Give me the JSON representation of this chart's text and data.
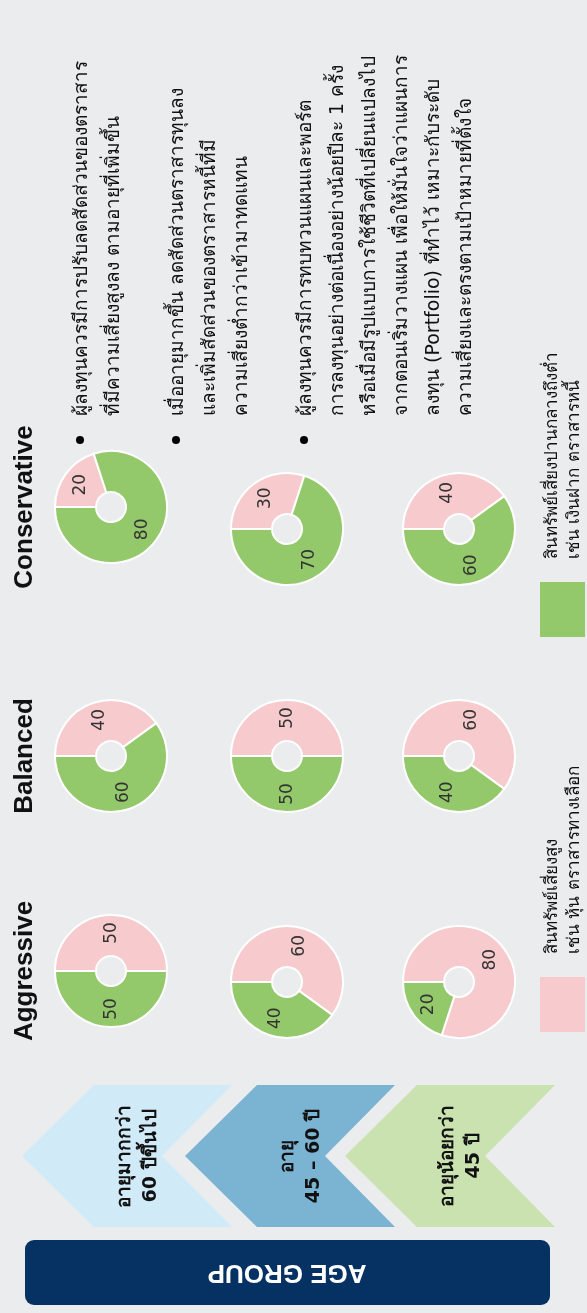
{
  "chart_data": [
    {
      "type": "donut",
      "title": "Aggressive",
      "categories": [
        null,
        null
      ],
      "values": [
        50,
        50
      ],
      "colors": [
        "#f7cbcd",
        "#94c96b"
      ],
      "data_labels": true
    },
    {
      "type": "donut",
      "title": "Balanced",
      "categories": [
        null,
        null
      ],
      "values": [
        40,
        60
      ],
      "colors": [
        "#f7cbcd",
        "#94c96b"
      ],
      "data_labels": true
    },
    {
      "type": "donut",
      "title": "Conservative",
      "categories": [
        null,
        null
      ],
      "values": [
        20,
        80
      ],
      "colors": [
        "#f7cbcd",
        "#94c96b"
      ],
      "data_labels": true
    },
    {
      "type": "donut",
      "categories": [
        null,
        null
      ],
      "values": [
        60,
        40
      ],
      "colors": [
        "#f7cbcd",
        "#94c96b"
      ],
      "data_labels": true
    },
    {
      "type": "donut",
      "categories": [
        null,
        null
      ],
      "values": [
        50,
        50
      ],
      "colors": [
        "#f7cbcd",
        "#94c96b"
      ],
      "data_labels": true
    },
    {
      "type": "donut",
      "categories": [
        null,
        null
      ],
      "values": [
        30,
        70
      ],
      "colors": [
        "#f7cbcd",
        "#94c96b"
      ],
      "data_labels": true
    },
    {
      "type": "donut",
      "categories": [
        "สินทรัพย์เสี่ยงสูง\nเช่น หุ้น ตราสารทางเลือก",
        null
      ],
      "values": [
        80,
        20
      ],
      "colors": [
        "#f7cbcd",
        "#94c96b"
      ],
      "data_labels": true
    },
    {
      "type": "donut",
      "categories": [
        null,
        null
      ],
      "values": [
        60,
        40
      ],
      "colors": [
        "#f7cbcd",
        "#94c96b"
      ],
      "data_labels": true
    },
    {
      "type": "donut",
      "categories": [
        null,
        "สินทรัพย์เสี่ยงปานกลางถึงต่ำ\nเช่น เงินฝาก ตราสารหนี้"
      ],
      "values": [
        40,
        60
      ],
      "colors": [
        "#f7cbcd",
        "#94c96b"
      ],
      "data_labels": true
    },
    {
      "type": "other",
      "annotations": [
        "AGE GROUP",
        "อายุมากกว่า\n60 ปีขึ้นไป",
        "อายุ\n45 – 60 ปี",
        "อายุน้อยกว่า\n45 ปี",
        "ผู้ลงทุนควรมีการปรับลดสัดส่วนของตราสาร\nที่มีความเสี่ยงสูงลง ตามอายุที่เพิ่มขึ้น",
        "เมื่ออายุมากขึ้น ลดสัดส่วนตราสารทุนลง\nและเพิ่มสัดส่วนของตราสารหนี้ที่มี\nความเสี่ยงต่ำกว่าเข้ามาทดแทน",
        "ผู้ลงทุนควรมีการทบทวนแผนและพอร์ต\nการลงทุนอย่างต่อเนื่องอย่างน้อยปีละ 1 ครั้ง\nหรือเมื่อมีรูปแบบการใช้ชีวิตที่เปลี่ยนแปลงไป\nจากตอนเริ่มวางแผน เพื่อให้มั่นใจว่าแผนการ\nลงทุน (Portfolio) ที่ทำไว้ เหมาะกับระดับ\nความเสี่ยงและตรงตามเป้าหมายที่ตั้งใจ"
      ]
    }
  ]
}
